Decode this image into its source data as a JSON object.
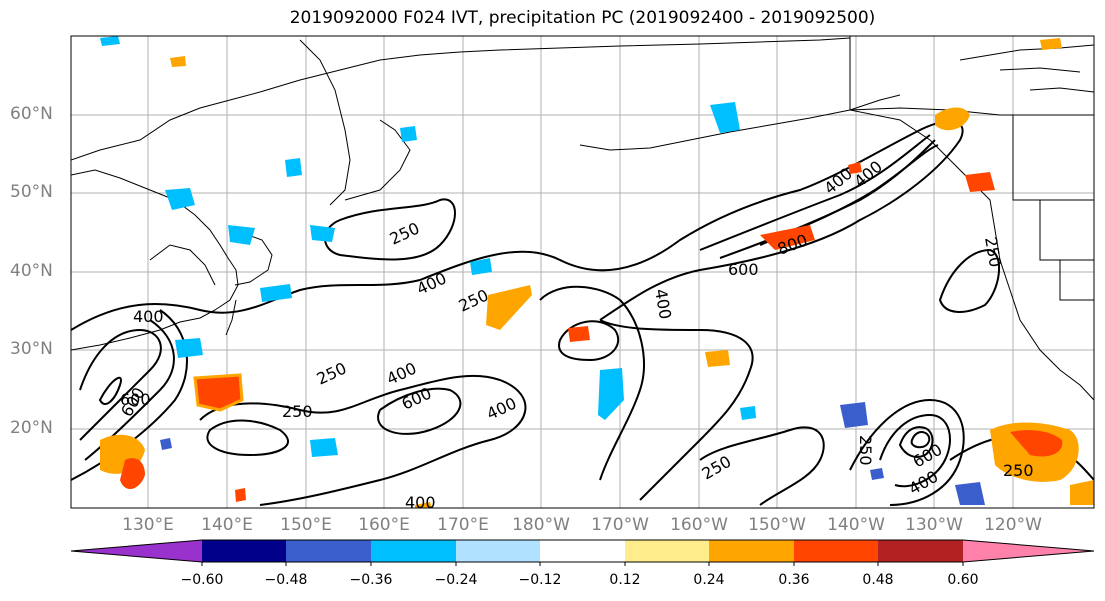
{
  "title": "2019092000 F024 IVT, precipitation PC (2019092400 - 2019092500)",
  "latitude_labels": [
    "60°N",
    "50°N",
    "40°N",
    "30°N",
    "20°N"
  ],
  "longitude_labels": [
    "130°E",
    "140°E",
    "150°E",
    "160°E",
    "170°E",
    "180°W",
    "170°W",
    "160°W",
    "150°W",
    "140°W",
    "130°W",
    "120°W"
  ],
  "contour_labels": [
    "250",
    "400",
    "250",
    "400",
    "400",
    "600",
    "800",
    "600",
    "400",
    "250",
    "400",
    "600",
    "400",
    "250",
    "400",
    "250",
    "250",
    "600",
    "400",
    "250",
    "600",
    "400",
    "250"
  ],
  "colorbar": {
    "ticks": [
      "−0.60",
      "−0.48",
      "−0.36",
      "−0.24",
      "−0.12",
      "0.12",
      "0.24",
      "0.36",
      "0.48",
      "0.60"
    ],
    "colors": [
      "#9932cc",
      "#00008b",
      "#3a5fcd",
      "#00bfff",
      "#b0e2ff",
      "#ffffff",
      "#ffec8b",
      "#ffa500",
      "#ff4500",
      "#b22222",
      "#ff82ab"
    ]
  }
}
